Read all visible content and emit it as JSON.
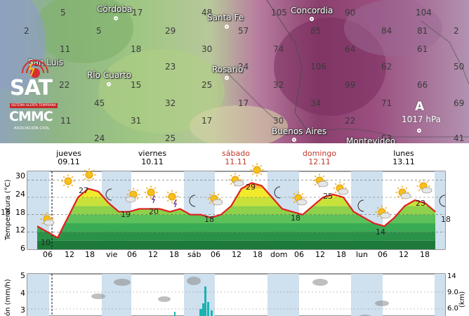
{
  "map": {
    "grid_numbers": [
      {
        "text": "5"
      },
      {
        "text": "17"
      },
      {
        "text": "48"
      },
      {
        "text": "105"
      },
      {
        "text": "90"
      },
      {
        "text": "104"
      },
      {
        "text": "2"
      },
      {
        "text": "5"
      },
      {
        "text": "29"
      },
      {
        "text": "57"
      },
      {
        "text": "85"
      },
      {
        "text": "84"
      },
      {
        "text": "81"
      },
      {
        "text": "2"
      },
      {
        "text": "11"
      },
      {
        "text": "18"
      },
      {
        "text": "30"
      },
      {
        "text": "74"
      },
      {
        "text": "64"
      },
      {
        "text": "61"
      },
      {
        "text": "23"
      },
      {
        "text": "24"
      },
      {
        "text": "106"
      },
      {
        "text": "62"
      },
      {
        "text": "50"
      },
      {
        "text": "22"
      },
      {
        "text": "15"
      },
      {
        "text": "25"
      },
      {
        "text": "32"
      },
      {
        "text": "99"
      },
      {
        "text": "66"
      },
      {
        "text": "45"
      },
      {
        "text": "32"
      },
      {
        "text": "17"
      },
      {
        "text": "34"
      },
      {
        "text": "71"
      },
      {
        "text": "69"
      },
      {
        "text": "11"
      },
      {
        "text": "31"
      },
      {
        "text": "17"
      },
      {
        "text": "30"
      },
      {
        "text": "22"
      },
      {
        "text": "53"
      },
      {
        "text": "41"
      },
      {
        "text": "24"
      },
      {
        "text": "25"
      }
    ],
    "cities": [
      {
        "name": "Córdoba"
      },
      {
        "name": "Santa Fe"
      },
      {
        "name": "Concordia"
      },
      {
        "name": "San Luis"
      },
      {
        "name": "Río Cuarto"
      },
      {
        "name": "Rosario"
      },
      {
        "name": "Buenos Aires"
      },
      {
        "name": "Montevideo"
      }
    ],
    "pressure": {
      "letter": "A",
      "value": "1017 hPa"
    },
    "logo": {
      "main": "SAT",
      "tagline": "SISTEMA ALERTA TEMPRANA",
      "org": "CMMC",
      "org_sub": "ASOCIACION CIVIL"
    }
  },
  "meteogram": {
    "days": [
      {
        "name": "jueves",
        "date": "09.11",
        "weekend": false
      },
      {
        "name": "viernes",
        "date": "10.11",
        "weekend": false
      },
      {
        "name": "sábado",
        "date": "11.11",
        "weekend": true
      },
      {
        "name": "domingo",
        "date": "12.11",
        "weekend": true
      },
      {
        "name": "lunes",
        "date": "13.11",
        "weekend": false
      }
    ],
    "xticks": [
      "06",
      "12",
      "18",
      "vie",
      "06",
      "12",
      "18",
      "sáb",
      "06",
      "12",
      "18",
      "dom",
      "06",
      "12",
      "18",
      "lun",
      "06",
      "12",
      "18"
    ],
    "temp_axis": {
      "label": "Temperatura (°C)",
      "ticks": [
        "30",
        "24",
        "18",
        "12",
        "6"
      ]
    },
    "temp_labels": [
      "27",
      "19",
      "20",
      "18",
      "29",
      "18",
      "25",
      "14",
      "23",
      "10",
      "18",
      "18"
    ],
    "precip_axis": {
      "label": "ón (mm/h)",
      "ticks": [
        "5",
        "4",
        "3"
      ]
    },
    "right_axis": {
      "label": "(km)",
      "ticks": [
        "14",
        "9.0",
        "6.0"
      ]
    },
    "colors": {
      "weekend": "#c0392b",
      "curve": "#e02020",
      "band": "#cfe0ee"
    }
  },
  "chart_data": {
    "type": "line",
    "title": "",
    "xlabel": "",
    "ylabel": "Temperatura (°C)",
    "ylim": [
      6,
      33
    ],
    "x": [
      "jue 00",
      "jue 03",
      "jue 06",
      "jue 09",
      "jue 12",
      "jue 15",
      "jue 18",
      "jue 21",
      "vie 00",
      "vie 03",
      "vie 06",
      "vie 09",
      "vie 12",
      "vie 15",
      "vie 18",
      "vie 21",
      "sáb 00",
      "sáb 03",
      "sáb 06",
      "sáb 09",
      "sáb 12",
      "sáb 15",
      "sáb 18",
      "sáb 21",
      "dom 00",
      "dom 03",
      "dom 06",
      "dom 09",
      "dom 12",
      "dom 15",
      "dom 18",
      "dom 21",
      "lun 00",
      "lun 03",
      "lun 06",
      "lun 09",
      "lun 12",
      "lun 15",
      "lun 18",
      "lun 21"
    ],
    "series": [
      {
        "values": [
          14,
          12,
          10,
          17,
          24,
          27,
          26,
          22,
          19,
          19,
          20,
          20,
          20,
          19,
          20,
          18,
          18,
          17,
          18,
          21,
          27,
          29,
          28,
          24,
          20,
          19,
          18,
          21,
          24,
          25,
          24,
          19,
          17,
          15,
          14,
          17,
          21,
          23,
          22,
          19
        ]
      }
    ]
  }
}
